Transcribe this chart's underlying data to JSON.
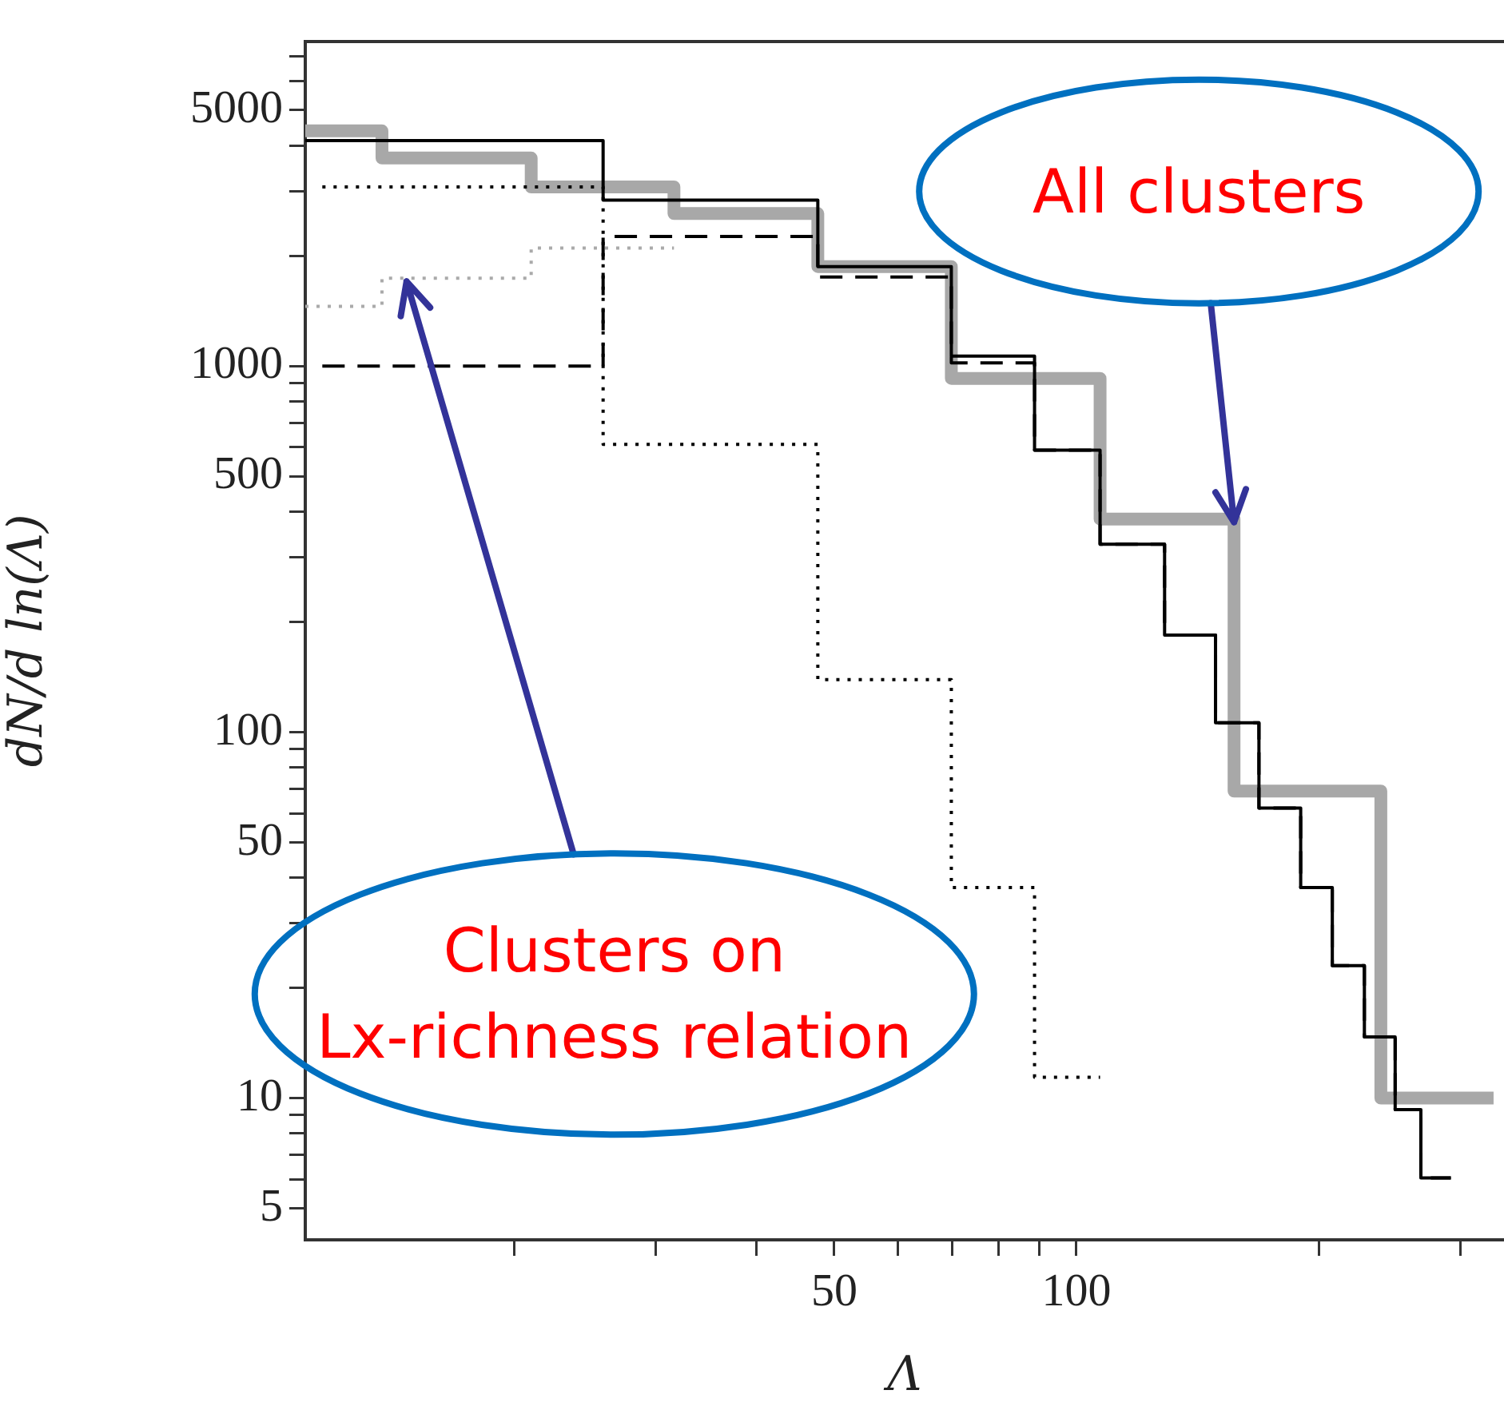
{
  "chart_data": {
    "type": "line",
    "xlabel": "Λ",
    "ylabel": "dN/d ln(Λ)",
    "log": "xy",
    "grid": false,
    "legend": false,
    "marker": "none",
    "xlim": [
      11,
      340
    ],
    "ylim": [
      4.1,
      7700
    ],
    "xticks": [
      {
        "value": 20,
        "label": null
      },
      {
        "value": 30,
        "label": null
      },
      {
        "value": 40,
        "label": null
      },
      50,
      {
        "value": 60,
        "label": null
      },
      {
        "value": 70,
        "label": null
      },
      {
        "value": 80,
        "label": null
      },
      {
        "value": 90,
        "label": null
      },
      100,
      {
        "value": 200,
        "label": null
      },
      {
        "value": 300,
        "label": null
      }
    ],
    "yticks": [
      5,
      {
        "value": 6,
        "label": null
      },
      {
        "value": 7,
        "label": null
      },
      {
        "value": 8,
        "label": null
      },
      {
        "value": 9,
        "label": null
      },
      10,
      {
        "value": 20,
        "label": null
      },
      {
        "value": 30,
        "label": null
      },
      {
        "value": 40,
        "label": null
      },
      50,
      {
        "value": 60,
        "label": null
      },
      {
        "value": 70,
        "label": null
      },
      {
        "value": 80,
        "label": null
      },
      {
        "value": 90,
        "label": null
      },
      100,
      {
        "value": 200,
        "label": null
      },
      {
        "value": 300,
        "label": null
      },
      {
        "value": 400,
        "label": null
      },
      500,
      {
        "value": 600,
        "label": null
      },
      {
        "value": 700,
        "label": null
      },
      {
        "value": 800,
        "label": null
      },
      {
        "value": 900,
        "label": null
      },
      1000,
      {
        "value": 2000,
        "label": null
      },
      {
        "value": 3000,
        "label": null
      },
      {
        "value": 4000,
        "label": null
      },
      5000,
      {
        "value": 6000,
        "label": null
      },
      {
        "value": 7000,
        "label": null
      }
    ],
    "series": [
      {
        "color": "#a8a8a8",
        "line_style": "solid",
        "x": [
          11,
          13.7,
          13.7,
          21,
          21,
          31.6,
          31.6,
          47.7,
          47.7,
          69.9,
          69.9,
          107,
          107,
          157,
          157,
          239,
          239,
          330
        ],
        "values": [
          4390,
          4390,
          3700,
          3700,
          3085,
          3085,
          2610,
          2610,
          1870,
          1870,
          925,
          925,
          382,
          382,
          69,
          69,
          10,
          10
        ]
      },
      {
        "color": "#000000",
        "line_style": "solid",
        "x": [
          11,
          25.8,
          25.8,
          47.7,
          47.7,
          69.9,
          69.9,
          88.7,
          88.7,
          107,
          107,
          128.7,
          128.7,
          148.9,
          148.9,
          168.6,
          168.6,
          190,
          190,
          208,
          208,
          228,
          228,
          249,
          249,
          268,
          268,
          292
        ],
        "values": [
          4130,
          4130,
          2840,
          2840,
          1870,
          1870,
          1065,
          1065,
          589,
          589,
          326,
          326,
          184,
          184,
          106,
          106,
          62,
          62,
          37.6,
          37.6,
          23,
          23,
          14.7,
          14.7,
          9.3,
          9.3,
          6.05,
          6.05
        ]
      },
      {
        "color": "#000000",
        "line_style": "dashed",
        "x": [
          11.55,
          25.8,
          25.8,
          47.7,
          47.7,
          69.9,
          69.9,
          88.7,
          88.7,
          107,
          107,
          128.7,
          128.7,
          148.9,
          148.9,
          168.6,
          168.6,
          190,
          190,
          208,
          208,
          228,
          228,
          249,
          249,
          268,
          268,
          292
        ],
        "values": [
          1000,
          1000,
          2260,
          2260,
          1750,
          1750,
          1020,
          1020,
          589,
          589,
          326,
          326,
          184,
          184,
          106,
          106,
          62,
          62,
          37.6,
          37.6,
          23,
          23,
          14.7,
          14.7,
          9.3,
          9.3,
          6.05,
          6.05
        ]
      },
      {
        "color": "#000000",
        "line_style": "dotted",
        "x": [
          11.55,
          25.8,
          25.8,
          47.7,
          47.7,
          69.9,
          69.9,
          88.7,
          88.7,
          107
        ],
        "values": [
          3085,
          3085,
          611,
          611,
          139,
          139,
          37.6,
          37.6,
          11.4,
          11.4
        ]
      },
      {
        "color": "#aaaaaa",
        "line_style": "dotted",
        "x": [
          11,
          13.7,
          13.7,
          21,
          21,
          31.6
        ],
        "values": [
          1455,
          1455,
          1737,
          1737,
          2100,
          2100
        ]
      }
    ],
    "annotations": [
      {
        "text": "All clusters",
        "x": 157,
        "y": 382
      },
      {
        "text": "Clusters on\nLx-richness relation",
        "x": 14.7,
        "y": 1737
      }
    ]
  }
}
